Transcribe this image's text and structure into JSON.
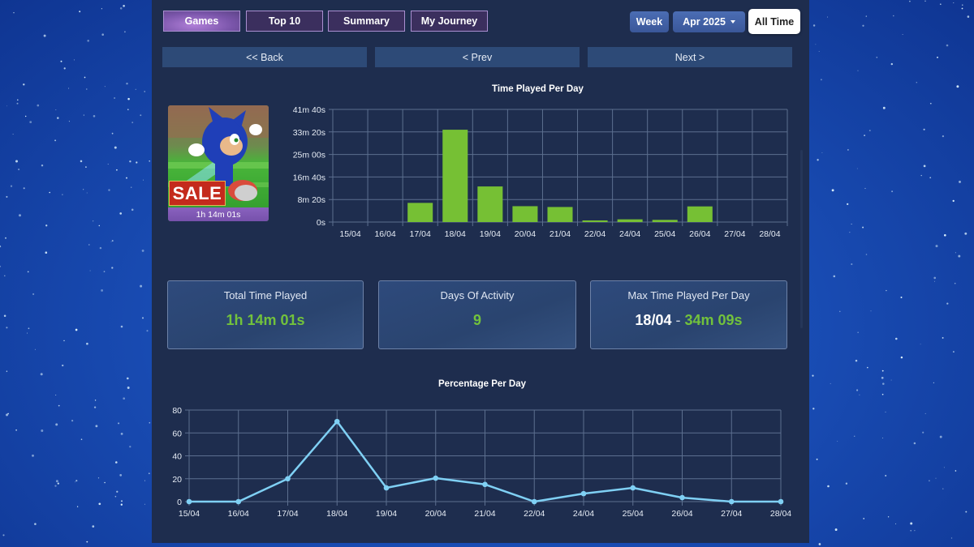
{
  "nav": {
    "tabs": [
      {
        "label": "Games",
        "active": true
      },
      {
        "label": "Top 10",
        "active": false
      },
      {
        "label": "Summary",
        "active": false
      },
      {
        "label": "My Journey",
        "active": false
      }
    ],
    "range": {
      "week_label": "Week",
      "month_label": "Apr 2025",
      "all_time_label": "All Time"
    },
    "back_label": "<< Back",
    "prev_label": "< Prev",
    "next_label": "Next >"
  },
  "game": {
    "badge_text": "SALE",
    "total_time_label": "1h 14m 01s"
  },
  "stats": {
    "total_time": {
      "label": "Total Time Played",
      "value": "1h 14m 01s"
    },
    "days_activity": {
      "label": "Days Of Activity",
      "value": "9"
    },
    "max_time": {
      "label": "Max Time Played Per Day",
      "date": "18/04",
      "separator": "-",
      "value": "34m 09s"
    }
  },
  "colors": {
    "bar": "#76c034",
    "line": "#7fd0f4",
    "accent_green": "#72c23c",
    "grid": "#5c6f8f"
  },
  "chart_data": [
    {
      "type": "bar",
      "title": "Time Played Per Day",
      "categories": [
        "15/04",
        "16/04",
        "17/04",
        "18/04",
        "19/04",
        "20/04",
        "21/04",
        "22/04",
        "24/04",
        "25/04",
        "26/04",
        "27/04",
        "28/04"
      ],
      "values": [
        0,
        0,
        425,
        2049,
        790,
        352,
        334,
        36,
        60,
        48,
        347,
        0,
        0
      ],
      "value_unit": "seconds",
      "ylim": [
        0,
        2500
      ],
      "yticks": [
        0,
        500,
        1000,
        1500,
        2000,
        2500
      ],
      "ytick_labels": [
        "0s",
        "8m 20s",
        "16m 40s",
        "25m 00s",
        "33m 20s",
        "41m 40s"
      ],
      "xlabel": "",
      "ylabel": "",
      "grid": true
    },
    {
      "type": "line",
      "title": "Percentage Per Day",
      "categories": [
        "15/04",
        "16/04",
        "17/04",
        "18/04",
        "19/04",
        "20/04",
        "21/04",
        "22/04",
        "24/04",
        "25/04",
        "26/04",
        "27/04",
        "28/04"
      ],
      "values": [
        0,
        0,
        20,
        70,
        12,
        20.5,
        15,
        0,
        7,
        12,
        3.5,
        0,
        0
      ],
      "ylim": [
        0,
        80
      ],
      "yticks": [
        0,
        20,
        40,
        60,
        80
      ],
      "ytick_labels": [
        "0",
        "20",
        "40",
        "60",
        "80"
      ],
      "xlabel": "",
      "ylabel": "",
      "grid": true
    }
  ]
}
